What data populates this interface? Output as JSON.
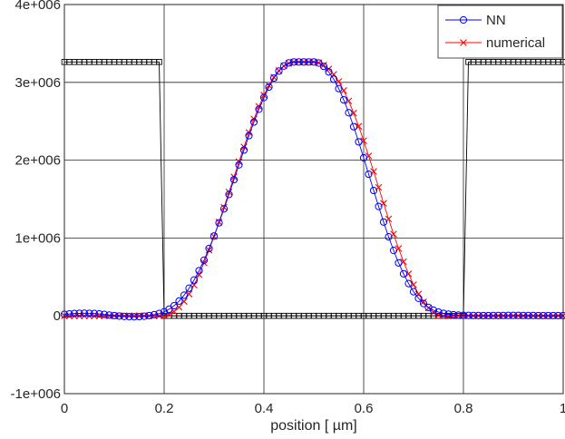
{
  "chart_data": {
    "type": "line",
    "title": "",
    "xlabel": "position [   µm]",
    "ylabel": "",
    "xlim": [
      0,
      1
    ],
    "ylim": [
      -1000000,
      4000000
    ],
    "grid": true,
    "legend_position": "top-right",
    "x_ticks": [
      0,
      0.2,
      0.4,
      0.6,
      0.8,
      1
    ],
    "x_tick_labels": [
      "0",
      "0.2",
      "0.4",
      "0.6",
      "0.8",
      "1"
    ],
    "y_ticks": [
      -1000000,
      0,
      1000000,
      2000000,
      3000000,
      4000000
    ],
    "y_tick_labels": [
      "-1e+006",
      "0",
      "1e+006",
      "2e+006",
      "3e+006",
      "4e+006"
    ],
    "series": [
      {
        "name": "NN",
        "color": "#0000ff",
        "marker": "circle",
        "x": [
          0,
          0.01,
          0.02,
          0.03,
          0.04,
          0.05,
          0.06,
          0.07,
          0.08,
          0.09,
          0.1,
          0.11,
          0.12,
          0.13,
          0.14,
          0.15,
          0.16,
          0.17,
          0.18,
          0.19,
          0.2,
          0.21,
          0.22,
          0.23,
          0.24,
          0.25,
          0.26,
          0.27,
          0.28,
          0.29,
          0.3,
          0.31,
          0.32,
          0.33,
          0.34,
          0.35,
          0.36,
          0.37,
          0.38,
          0.39,
          0.4,
          0.41,
          0.42,
          0.43,
          0.44,
          0.45,
          0.46,
          0.47,
          0.48,
          0.49,
          0.5,
          0.51,
          0.52,
          0.53,
          0.54,
          0.55,
          0.56,
          0.57,
          0.58,
          0.59,
          0.6,
          0.61,
          0.62,
          0.63,
          0.64,
          0.65,
          0.66,
          0.67,
          0.68,
          0.69,
          0.7,
          0.71,
          0.72,
          0.73,
          0.74,
          0.75,
          0.76,
          0.77,
          0.78,
          0.79,
          0.8,
          0.81,
          0.82,
          0.83,
          0.84,
          0.85,
          0.86,
          0.87,
          0.88,
          0.89,
          0.9,
          0.91,
          0.92,
          0.93,
          0.94,
          0.95,
          0.96,
          0.97,
          0.98,
          0.99,
          1
        ],
        "y": [
          20000,
          25000,
          30000,
          32000,
          33000,
          32000,
          30000,
          25000,
          18000,
          10000,
          3000,
          -3000,
          -8000,
          -11000,
          -12000,
          -10000,
          -5000,
          3000,
          15000,
          30000,
          52000,
          85000,
          130000,
          190000,
          265000,
          355000,
          460000,
          580000,
          715000,
          865000,
          1025000,
          1195000,
          1375000,
          1560000,
          1750000,
          1940000,
          2130000,
          2315000,
          2490000,
          2655000,
          2805000,
          2940000,
          3055000,
          3145000,
          3210000,
          3250000,
          3262000,
          3262000,
          3262000,
          3262000,
          3262000,
          3248000,
          3205000,
          3135000,
          3040000,
          2920000,
          2775000,
          2610000,
          2430000,
          2235000,
          2030000,
          1820000,
          1610000,
          1405000,
          1205000,
          1015000,
          840000,
          680000,
          540000,
          415000,
          310000,
          225000,
          158000,
          108000,
          72000,
          48000,
          32000,
          22000,
          15000,
          10000,
          7000,
          5000,
          4000,
          3500,
          3000,
          3000,
          3500,
          4000,
          4500,
          5000,
          5000,
          5000,
          4500,
          4000,
          3500,
          3000,
          3000,
          3000,
          3000,
          3000,
          3000
        ]
      },
      {
        "name": "numerical",
        "color": "#ff0000",
        "marker": "x",
        "x": [
          0,
          0.01,
          0.02,
          0.03,
          0.04,
          0.05,
          0.06,
          0.07,
          0.08,
          0.09,
          0.1,
          0.11,
          0.12,
          0.13,
          0.14,
          0.15,
          0.16,
          0.17,
          0.18,
          0.19,
          0.2,
          0.21,
          0.22,
          0.23,
          0.24,
          0.25,
          0.26,
          0.27,
          0.28,
          0.29,
          0.3,
          0.31,
          0.32,
          0.33,
          0.34,
          0.35,
          0.36,
          0.37,
          0.38,
          0.39,
          0.4,
          0.41,
          0.42,
          0.43,
          0.44,
          0.45,
          0.46,
          0.47,
          0.48,
          0.49,
          0.5,
          0.51,
          0.52,
          0.53,
          0.54,
          0.55,
          0.56,
          0.57,
          0.58,
          0.59,
          0.6,
          0.61,
          0.62,
          0.63,
          0.64,
          0.65,
          0.66,
          0.67,
          0.68,
          0.69,
          0.7,
          0.71,
          0.72,
          0.73,
          0.74,
          0.75,
          0.76,
          0.77,
          0.78,
          0.79,
          0.8,
          0.81,
          0.82,
          0.83,
          0.84,
          0.85,
          0.86,
          0.87,
          0.88,
          0.89,
          0.9,
          0.91,
          0.92,
          0.93,
          0.94,
          0.95,
          0.96,
          0.97,
          0.98,
          0.99,
          1
        ],
        "y": [
          0,
          0,
          0,
          0,
          0,
          0,
          0,
          0,
          0,
          0,
          0,
          0,
          0,
          0,
          0,
          0,
          0,
          0,
          0,
          0,
          0,
          20000,
          55000,
          110000,
          185000,
          280000,
          395000,
          530000,
          680000,
          845000,
          1020000,
          1205000,
          1395000,
          1590000,
          1785000,
          1980000,
          2170000,
          2355000,
          2530000,
          2690000,
          2835000,
          2960000,
          3065000,
          3150000,
          3210000,
          3245000,
          3262000,
          3262000,
          3262000,
          3262000,
          3262000,
          3252000,
          3222000,
          3172000,
          3102000,
          3010000,
          2895000,
          2760000,
          2605000,
          2435000,
          2250000,
          2055000,
          1855000,
          1650000,
          1445000,
          1245000,
          1050000,
          865000,
          695000,
          540000,
          400000,
          280000,
          180000,
          100000,
          45000,
          10000,
          0,
          0,
          0,
          0,
          0,
          0,
          0,
          0,
          0,
          0,
          0,
          0,
          0,
          0,
          0,
          0,
          0,
          0,
          0,
          0,
          0,
          0,
          0,
          0,
          0
        ]
      },
      {
        "name": "",
        "color": "#000000",
        "marker": "square",
        "x": [
          0,
          0.01,
          0.02,
          0.03,
          0.04,
          0.05,
          0.06,
          0.07,
          0.08,
          0.09,
          0.1,
          0.11,
          0.12,
          0.13,
          0.14,
          0.15,
          0.16,
          0.17,
          0.18,
          0.19,
          0.2,
          0.21,
          0.22,
          0.23,
          0.24,
          0.25,
          0.26,
          0.27,
          0.28,
          0.29,
          0.3,
          0.31,
          0.32,
          0.33,
          0.34,
          0.35,
          0.36,
          0.37,
          0.38,
          0.39,
          0.4,
          0.41,
          0.42,
          0.43,
          0.44,
          0.45,
          0.46,
          0.47,
          0.48,
          0.49,
          0.5,
          0.51,
          0.52,
          0.53,
          0.54,
          0.55,
          0.56,
          0.57,
          0.58,
          0.59,
          0.6,
          0.61,
          0.62,
          0.63,
          0.64,
          0.65,
          0.66,
          0.67,
          0.68,
          0.69,
          0.7,
          0.71,
          0.72,
          0.73,
          0.74,
          0.75,
          0.76,
          0.77,
          0.78,
          0.79,
          0.8,
          0.81,
          0.82,
          0.83,
          0.84,
          0.85,
          0.86,
          0.87,
          0.88,
          0.89,
          0.9,
          0.91,
          0.92,
          0.93,
          0.94,
          0.95,
          0.96,
          0.97,
          0.98,
          0.99,
          1
        ],
        "y": [
          3262000,
          3262000,
          3262000,
          3262000,
          3262000,
          3262000,
          3262000,
          3262000,
          3262000,
          3262000,
          3262000,
          3262000,
          3262000,
          3262000,
          3262000,
          3262000,
          3262000,
          3262000,
          3262000,
          3262000,
          0,
          0,
          0,
          0,
          0,
          0,
          0,
          0,
          0,
          0,
          0,
          0,
          0,
          0,
          0,
          0,
          0,
          0,
          0,
          0,
          0,
          0,
          0,
          0,
          0,
          0,
          0,
          0,
          0,
          0,
          0,
          0,
          0,
          0,
          0,
          0,
          0,
          0,
          0,
          0,
          0,
          0,
          0,
          0,
          0,
          0,
          0,
          0,
          0,
          0,
          0,
          0,
          0,
          0,
          0,
          0,
          0,
          0,
          0,
          0,
          0,
          3262000,
          3262000,
          3262000,
          3262000,
          3262000,
          3262000,
          3262000,
          3262000,
          3262000,
          3262000,
          3262000,
          3262000,
          3262000,
          3262000,
          3262000,
          3262000,
          3262000,
          3262000,
          3262000,
          3262000
        ]
      }
    ]
  }
}
